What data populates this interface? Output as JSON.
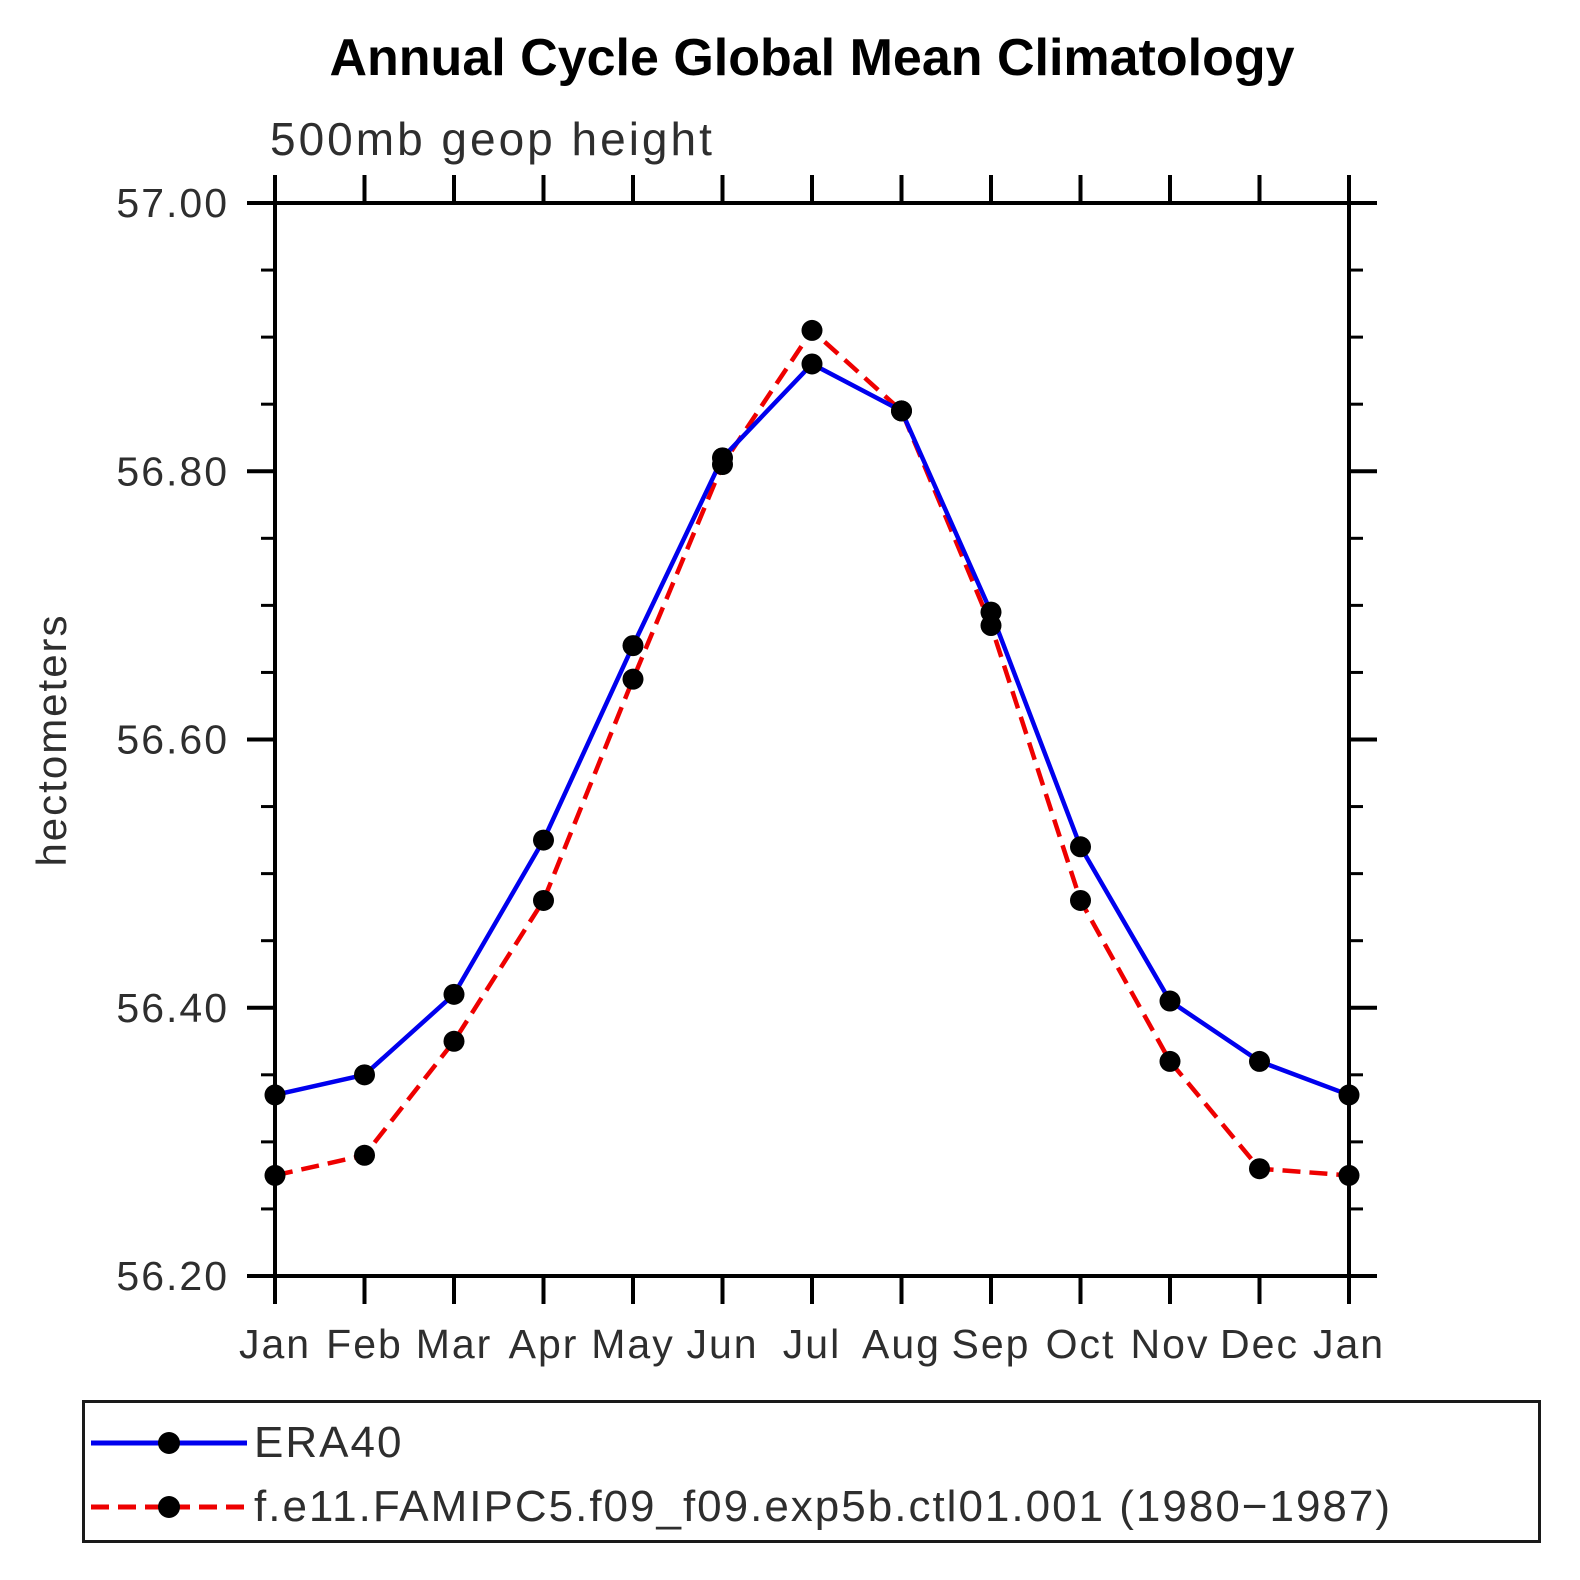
{
  "title": "Annual Cycle Global Mean Climatology",
  "subtitle": "500mb geop height",
  "y_axis_label": "hectometers",
  "legend": {
    "entries": [
      {
        "label": "ERA40",
        "color": "#0000ee",
        "line_style": "solid",
        "marker_color": "#000000"
      },
      {
        "label": "f.e11.FAMIPC5.f09_f09.exp5b.ctl01.001 (1980−1987)",
        "color": "#ee0000",
        "line_style": "dashed",
        "marker_color": "#000000"
      }
    ]
  },
  "chart_data": {
    "type": "line",
    "title": "Annual Cycle Global Mean Climatology",
    "subtitle": "500mb geop height",
    "xlabel": "",
    "ylabel": "hectometers",
    "x_categories": [
      "Jan",
      "Feb",
      "Mar",
      "Apr",
      "May",
      "Jun",
      "Jul",
      "Aug",
      "Sep",
      "Oct",
      "Nov",
      "Dec",
      "Jan"
    ],
    "series": [
      {
        "name": "ERA40",
        "color": "#0000ee",
        "line_style": "solid",
        "marker": "filled-circle",
        "marker_color": "#000000",
        "values": [
          56.335,
          56.35,
          56.41,
          56.525,
          56.67,
          56.81,
          56.88,
          56.845,
          56.695,
          56.52,
          56.405,
          56.36,
          56.335
        ]
      },
      {
        "name": "f.e11.FAMIPC5.f09_f09.exp5b.ctl01.001 (1980−1987)",
        "color": "#ee0000",
        "line_style": "dashed",
        "marker": "filled-circle",
        "marker_color": "#000000",
        "values": [
          56.275,
          56.29,
          56.375,
          56.48,
          56.645,
          56.805,
          56.905,
          56.845,
          56.685,
          56.48,
          56.36,
          56.28,
          56.275
        ]
      }
    ],
    "ylim": [
      56.2,
      57.0
    ],
    "ytick_major": [
      56.2,
      56.4,
      56.6,
      56.8,
      57.0
    ],
    "ytick_labels": [
      "56.20",
      "56.40",
      "56.60",
      "56.80",
      "57.00"
    ],
    "ytick_minor_step": 0.05,
    "grid": false,
    "legend_position": "bottom"
  }
}
